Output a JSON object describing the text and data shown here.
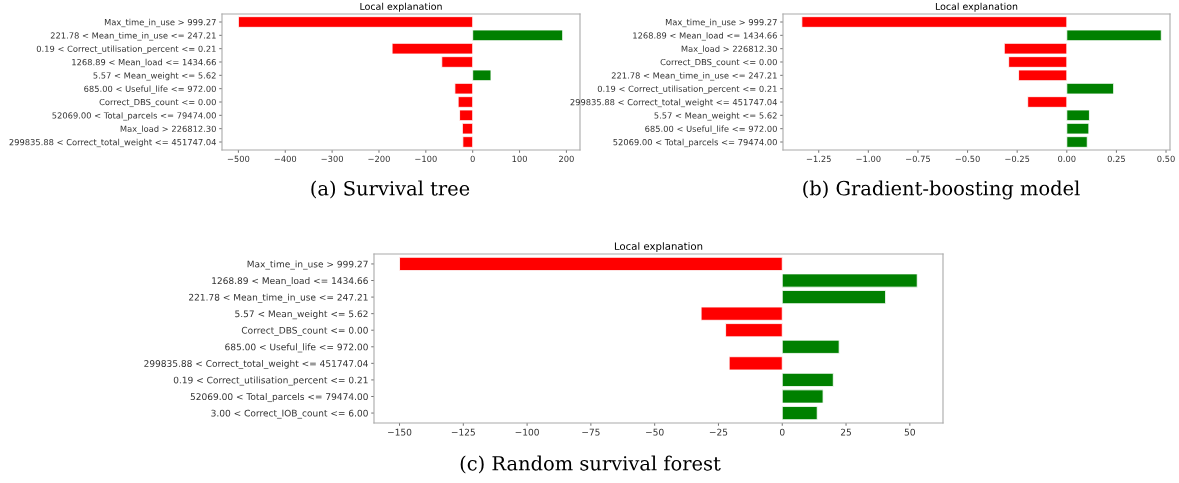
{
  "chart_data": [
    {
      "type": "bar",
      "orientation": "horizontal",
      "title": "Local explanation",
      "annotations": [
        "(a) Survival tree"
      ],
      "categories": [
        "Max_time_in_use > 999.27",
        "221.78 < Mean_time_in_use <= 247.21",
        "0.19 < Correct_utilisation_percent <= 0.21",
        "1268.89 < Mean_load <= 1434.66",
        "5.57 < Mean_weight <= 5.62",
        "685.00 < Useful_life <= 972.00",
        "Correct_DBS_count <= 0.00",
        "52069.00 < Total_parcels <= 79474.00",
        "Max_load > 226812.30",
        "299835.88 < Correct_total_weight <= 451747.04"
      ],
      "values": [
        -500,
        192,
        -172,
        -66,
        39,
        -38,
        -31,
        -28,
        -22,
        -21
      ],
      "colors": [
        "#ff0000",
        "#008000",
        "#ff0000",
        "#ff0000",
        "#008000",
        "#ff0000",
        "#ff0000",
        "#ff0000",
        "#ff0000",
        "#ff0000"
      ],
      "xlim": [
        -535,
        229
      ],
      "xticks": [
        {
          "value": -500,
          "label": "−500"
        },
        {
          "value": -400,
          "label": "−400"
        },
        {
          "value": -300,
          "label": "−300"
        },
        {
          "value": -200,
          "label": "−200"
        },
        {
          "value": -100,
          "label": "−100"
        },
        0,
        100,
        200
      ],
      "grid": false
    },
    {
      "type": "bar",
      "orientation": "horizontal",
      "title": "Local explanation",
      "annotations": [
        "(b) Gradient-boosting model"
      ],
      "categories": [
        "Max_time_in_use > 999.27",
        "1268.89 < Mean_load <= 1434.66",
        "Max_load > 226812.30",
        "Correct_DBS_count <= 0.00",
        "221.78 < Mean_time_in_use <= 247.21",
        "0.19 < Correct_utilisation_percent <= 0.21",
        "299835.88 < Correct_total_weight <= 451747.04",
        "5.57 < Mean_weight <= 5.62",
        "685.00 < Useful_life <= 972.00",
        "52069.00 < Total_parcels <= 79474.00"
      ],
      "values": [
        -1.335,
        0.476,
        -0.315,
        -0.293,
        -0.243,
        0.236,
        -0.197,
        0.114,
        0.111,
        0.103
      ],
      "colors": [
        "#ff0000",
        "#008000",
        "#ff0000",
        "#ff0000",
        "#ff0000",
        "#008000",
        "#ff0000",
        "#008000",
        "#008000",
        "#008000"
      ],
      "xlim": [
        -1.43,
        0.52
      ],
      "xticks": [
        {
          "value": -1.25,
          "label": "−1.25"
        },
        {
          "value": -1.0,
          "label": "−1.00"
        },
        {
          "value": -0.75,
          "label": "−0.75"
        },
        {
          "value": -0.5,
          "label": "−0.50"
        },
        {
          "value": -0.25,
          "label": "−0.25"
        },
        {
          "value": 0,
          "label": "0.00"
        },
        {
          "value": 0.25,
          "label": "0.25"
        },
        {
          "value": 0.5,
          "label": "0.50"
        }
      ],
      "grid": false
    },
    {
      "type": "bar",
      "orientation": "horizontal",
      "title": "Local explanation",
      "annotations": [
        "(c) Random survival forest"
      ],
      "categories": [
        "Max_time_in_use > 999.27",
        "1268.89 < Mean_load <= 1434.66",
        "221.78 < Mean_time_in_use <= 247.21",
        "5.57 < Mean_weight <= 5.62",
        "Correct_DBS_count <= 0.00",
        "685.00 < Useful_life <= 972.00",
        "299835.88 < Correct_total_weight <= 451747.04",
        "0.19 < Correct_utilisation_percent <= 0.21",
        "52069.00 < Total_parcels <= 79474.00",
        "3.00 < Correct_IOB_count <= 6.00"
      ],
      "values": [
        -150,
        52.9,
        40.5,
        -31.8,
        -22.2,
        22.3,
        -20.8,
        20,
        16,
        13.7
      ],
      "colors": [
        "#ff0000",
        "#008000",
        "#008000",
        "#ff0000",
        "#ff0000",
        "#008000",
        "#ff0000",
        "#008000",
        "#008000",
        "#008000"
      ],
      "xlim": [
        -160,
        63
      ],
      "xticks": [
        {
          "value": -150,
          "label": "−150"
        },
        {
          "value": -125,
          "label": "−125"
        },
        {
          "value": -100,
          "label": "−100"
        },
        {
          "value": -75,
          "label": "−75"
        },
        {
          "value": -50,
          "label": "−50"
        },
        {
          "value": -25,
          "label": "−25"
        },
        0,
        25,
        50
      ],
      "grid": false
    }
  ]
}
